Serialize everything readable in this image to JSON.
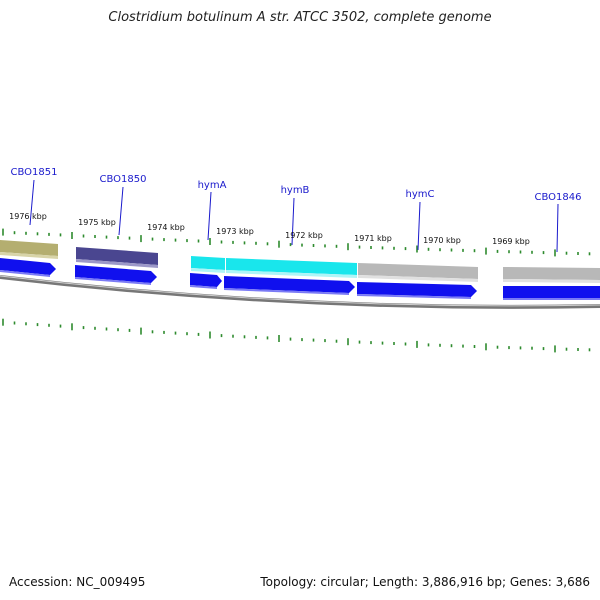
{
  "title": "Clostridium botulinum A str. ATCC 3502, complete genome",
  "footer": {
    "accession": "Accession: NC_009495",
    "summary": "Topology: circular; Length: 3,886,916 bp; Genes: 3,686"
  },
  "ticks": [
    "1976 kbp",
    "1975 kbp",
    "1974 kbp",
    "1973 kbp",
    "1972 kbp",
    "1971 kbp",
    "1970 kbp",
    "1969 kbp"
  ],
  "genes": [
    "CBO1851",
    "CBO1850",
    "hymA",
    "hymB",
    "hymC",
    "CBO1846"
  ],
  "colors": {
    "tick": "#2e8b2e",
    "label": "#1a1acc",
    "cds": "#1010ee",
    "backbone": "#8a8a8a",
    "feature_olive": "#b4ae70",
    "feature_navy": "#4a4690",
    "feature_cyan": "#19e6ec",
    "feature_grey": "#b8b8b8"
  }
}
